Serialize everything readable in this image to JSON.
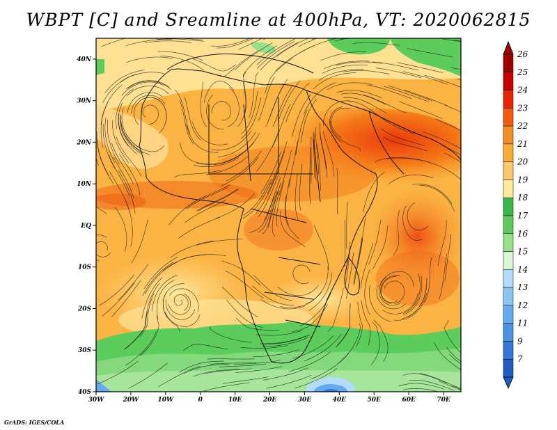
{
  "title": "WBPT [C] and Sreamline at 400hPa, VT: 2020062815",
  "credit": "GrADS: IGES/COLA",
  "map": {
    "variable": "WBPT",
    "units": "C",
    "level": "400hPa",
    "valid_time": "2020062815",
    "lon_range": [
      -30,
      75
    ],
    "lat_range": [
      -40,
      45
    ],
    "lat_ticks": [
      {
        "value": 40,
        "label": "40N"
      },
      {
        "value": 30,
        "label": "30N"
      },
      {
        "value": 20,
        "label": "20N"
      },
      {
        "value": 10,
        "label": "10N"
      },
      {
        "value": 0,
        "label": "EQ"
      },
      {
        "value": -10,
        "label": "10S"
      },
      {
        "value": -20,
        "label": "20S"
      },
      {
        "value": -30,
        "label": "30S"
      },
      {
        "value": -40,
        "label": "40S"
      }
    ],
    "lon_ticks": [
      {
        "value": -30,
        "label": "30W"
      },
      {
        "value": -20,
        "label": "20W"
      },
      {
        "value": -10,
        "label": "10W"
      },
      {
        "value": 0,
        "label": "0"
      },
      {
        "value": 10,
        "label": "10E"
      },
      {
        "value": 20,
        "label": "20E"
      },
      {
        "value": 30,
        "label": "30E"
      },
      {
        "value": 40,
        "label": "40E"
      },
      {
        "value": 50,
        "label": "50E"
      },
      {
        "value": 60,
        "label": "60E"
      },
      {
        "value": 70,
        "label": "70E"
      }
    ]
  },
  "colorbar": {
    "levels": [
      {
        "label": "26",
        "color": "#a00000"
      },
      {
        "label": "25",
        "color": "#c80000"
      },
      {
        "label": "24",
        "color": "#ea2200"
      },
      {
        "label": "23",
        "color": "#f55a0c"
      },
      {
        "label": "22",
        "color": "#f88c20"
      },
      {
        "label": "21",
        "color": "#fbac34"
      },
      {
        "label": "20",
        "color": "#fdc86a"
      },
      {
        "label": "19",
        "color": "#feea98"
      },
      {
        "label": "18",
        "color": "#36b84a"
      },
      {
        "label": "17",
        "color": "#5ccc5c"
      },
      {
        "label": "16",
        "color": "#96e08c"
      },
      {
        "label": "15",
        "color": "#d8f7d4"
      },
      {
        "label": "14",
        "color": "#b4dcfa"
      },
      {
        "label": "13",
        "color": "#8cc4f4"
      },
      {
        "label": "12",
        "color": "#64aaf0"
      },
      {
        "label": "11",
        "color": "#4a92e6"
      },
      {
        "label": "9",
        "color": "#3278dc"
      },
      {
        "label": "7",
        "color": "#1c5cc4"
      }
    ],
    "top_color": "#a00000",
    "bottom_color": "#1c5cc4"
  }
}
